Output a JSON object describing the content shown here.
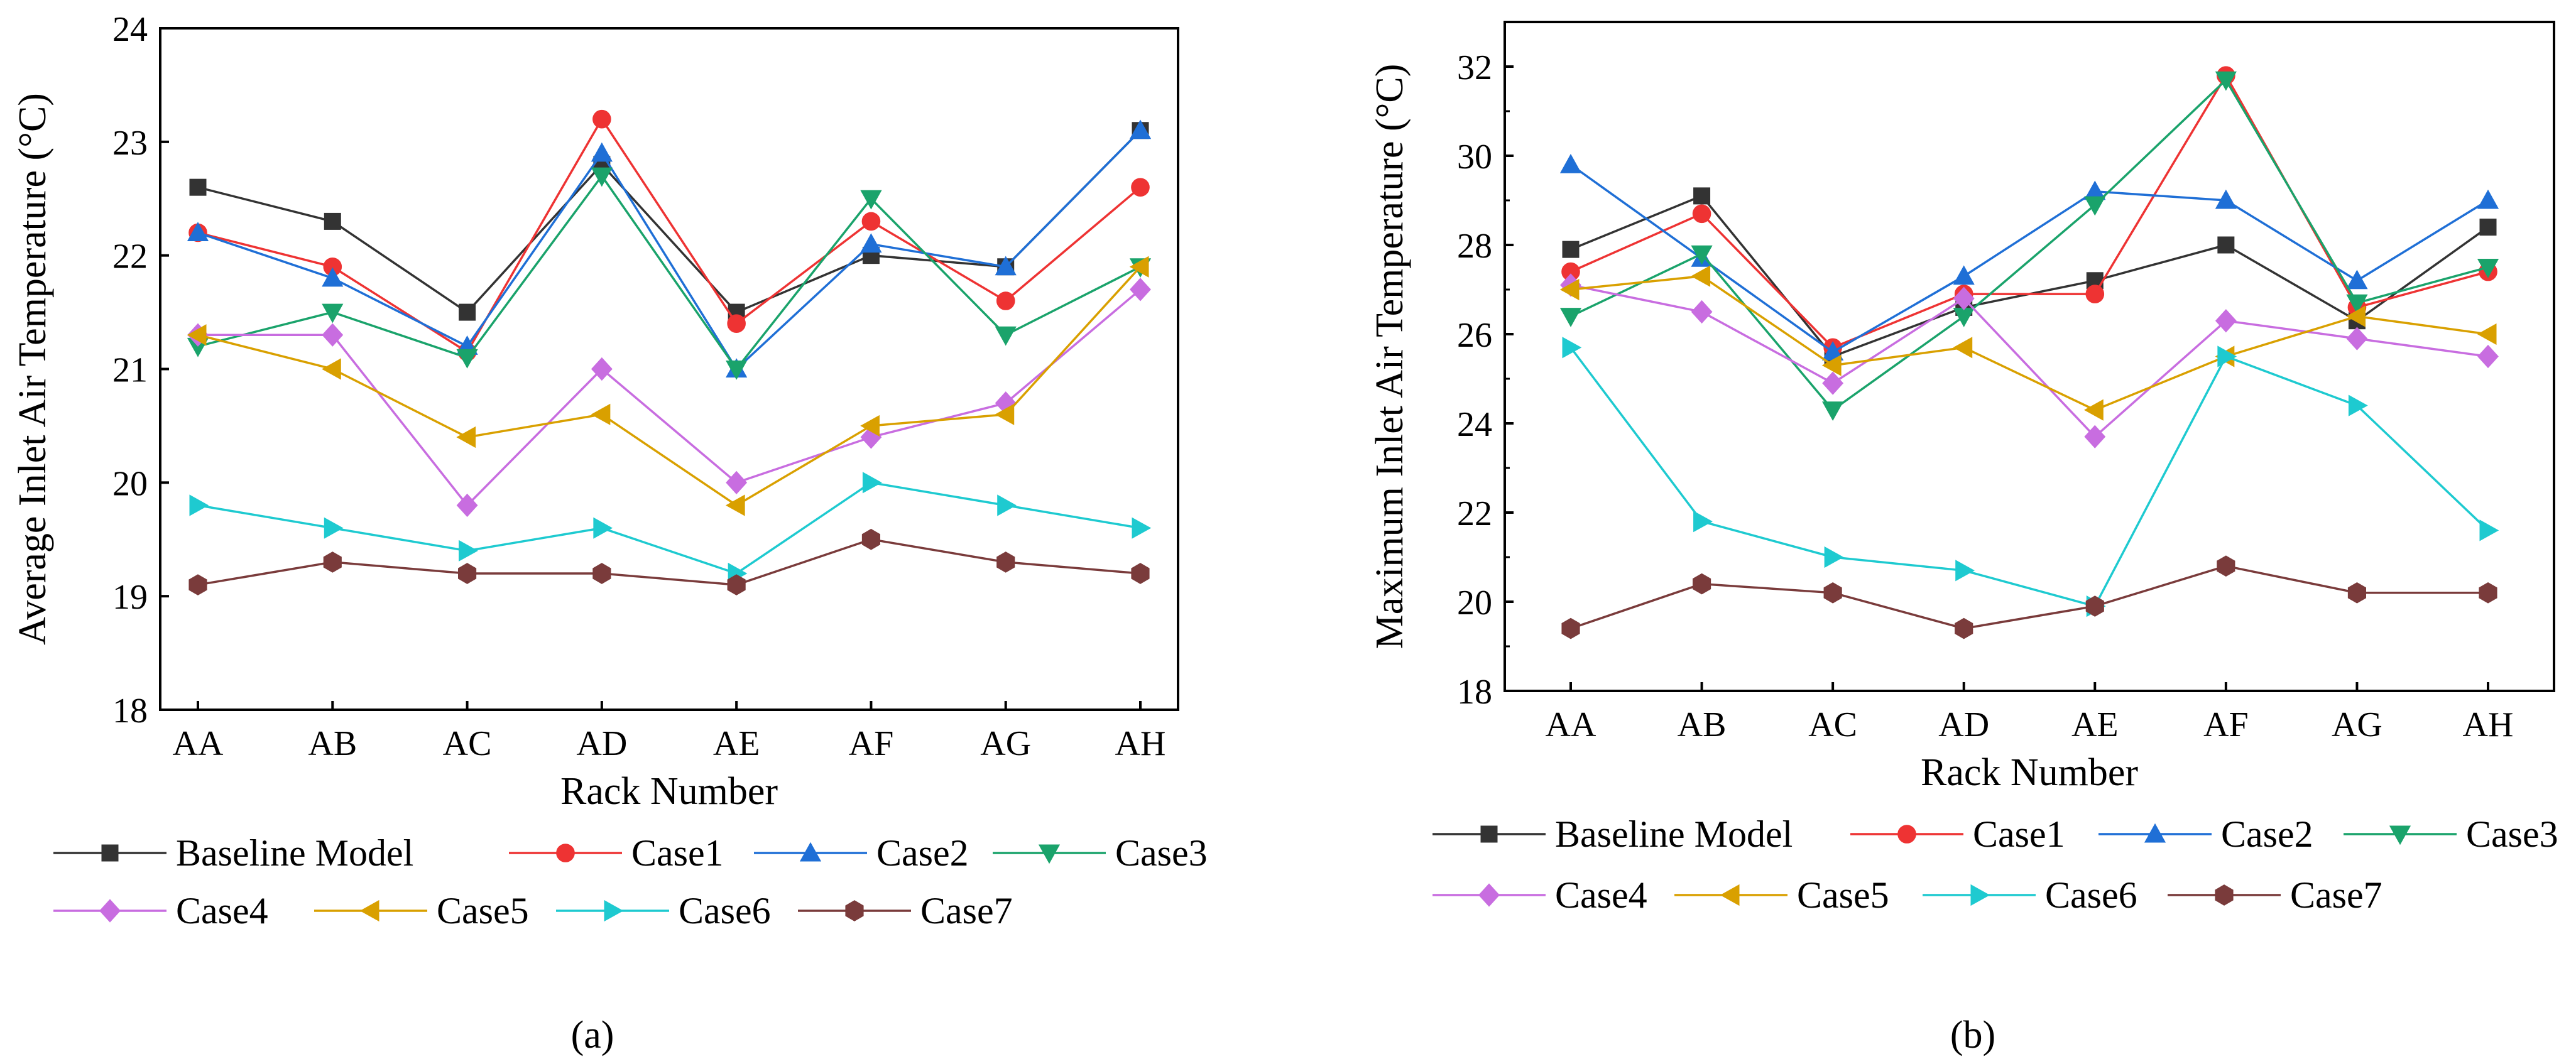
{
  "figure": {
    "panels": [
      "(a)",
      "(b)"
    ]
  },
  "chart_data": [
    {
      "type": "line",
      "panel_label": "(a)",
      "xlabel": "Rack Number",
      "ylabel": "Average Inlet Air Temperature (°C)",
      "categories": [
        "AA",
        "AB",
        "AC",
        "AD",
        "AE",
        "AF",
        "AG",
        "AH"
      ],
      "ylim": [
        18,
        24
      ],
      "yticks": [
        "18",
        "19",
        "20",
        "21",
        "22",
        "23",
        "24"
      ],
      "legend_position": "bottom",
      "series": [
        {
          "name": "Baseline Model",
          "color": "#333333",
          "marker": "square",
          "values": [
            22.6,
            22.3,
            21.5,
            22.8,
            21.5,
            22.0,
            21.9,
            23.1
          ]
        },
        {
          "name": "Case1",
          "color": "#ee3333",
          "marker": "circle",
          "values": [
            22.2,
            21.9,
            21.15,
            23.2,
            21.4,
            22.3,
            21.6,
            22.6
          ]
        },
        {
          "name": "Case2",
          "color": "#1f6fd6",
          "marker": "triangle-up",
          "values": [
            22.2,
            21.8,
            21.2,
            22.9,
            21.0,
            22.1,
            21.9,
            23.1
          ]
        },
        {
          "name": "Case3",
          "color": "#1aa36b",
          "marker": "triangle-down",
          "values": [
            21.2,
            21.5,
            21.1,
            22.7,
            21.0,
            22.5,
            21.3,
            21.9
          ]
        },
        {
          "name": "Case4",
          "color": "#c86de0",
          "marker": "diamond",
          "values": [
            21.3,
            21.3,
            19.8,
            21.0,
            20.0,
            20.4,
            20.7,
            21.7
          ]
        },
        {
          "name": "Case5",
          "color": "#d9a000",
          "marker": "triangle-left",
          "values": [
            21.3,
            21.0,
            20.4,
            20.6,
            19.8,
            20.5,
            20.6,
            21.9
          ]
        },
        {
          "name": "Case6",
          "color": "#1ecad0",
          "marker": "triangle-right",
          "values": [
            19.8,
            19.6,
            19.4,
            19.6,
            19.2,
            20.0,
            19.8,
            19.6
          ]
        },
        {
          "name": "Case7",
          "color": "#7a3b3b",
          "marker": "hexagon",
          "values": [
            19.1,
            19.3,
            19.2,
            19.2,
            19.1,
            19.5,
            19.3,
            19.2
          ]
        }
      ]
    },
    {
      "type": "line",
      "panel_label": "(b)",
      "xlabel": "Rack Number",
      "ylabel": "Maximum Inlet Air Temperature (°C)",
      "categories": [
        "AA",
        "AB",
        "AC",
        "AD",
        "AE",
        "AF",
        "AG",
        "AH"
      ],
      "ylim": [
        18,
        33
      ],
      "yticks": [
        "18",
        "20",
        "22",
        "24",
        "26",
        "28",
        "30",
        "32"
      ],
      "legend_position": "bottom",
      "series": [
        {
          "name": "Baseline Model",
          "color": "#333333",
          "marker": "square",
          "values": [
            27.9,
            29.1,
            25.5,
            26.6,
            27.2,
            28.0,
            26.3,
            28.4
          ]
        },
        {
          "name": "Case1",
          "color": "#ee3333",
          "marker": "circle",
          "values": [
            27.4,
            28.7,
            25.7,
            26.9,
            26.9,
            31.8,
            26.6,
            27.4
          ]
        },
        {
          "name": "Case2",
          "color": "#1f6fd6",
          "marker": "triangle-up",
          "values": [
            29.8,
            27.7,
            25.6,
            27.3,
            29.2,
            29.0,
            27.2,
            29.0
          ]
        },
        {
          "name": "Case3",
          "color": "#1aa36b",
          "marker": "triangle-down",
          "values": [
            26.4,
            27.8,
            24.3,
            26.4,
            28.9,
            31.7,
            26.7,
            27.5
          ]
        },
        {
          "name": "Case4",
          "color": "#c86de0",
          "marker": "diamond",
          "values": [
            27.1,
            26.5,
            24.9,
            26.8,
            23.7,
            26.3,
            25.9,
            25.5
          ]
        },
        {
          "name": "Case5",
          "color": "#d9a000",
          "marker": "triangle-left",
          "values": [
            27.0,
            27.3,
            25.3,
            25.7,
            24.3,
            25.5,
            26.4,
            26.0
          ]
        },
        {
          "name": "Case6",
          "color": "#1ecad0",
          "marker": "triangle-right",
          "values": [
            25.7,
            21.8,
            21.0,
            20.7,
            19.9,
            25.5,
            24.4,
            21.6
          ]
        },
        {
          "name": "Case7",
          "color": "#7a3b3b",
          "marker": "hexagon",
          "values": [
            19.4,
            20.4,
            20.2,
            19.4,
            19.9,
            20.8,
            20.2,
            20.2
          ]
        }
      ]
    }
  ]
}
